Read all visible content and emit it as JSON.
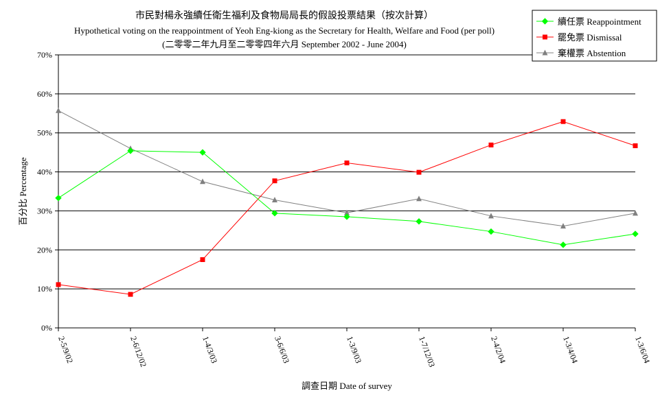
{
  "chart_data": {
    "type": "line",
    "title": "市民對楊永強續任衛生福利及食物局局長的假設投票結果（按次計算）",
    "subtitle": "Hypothetical voting on the reappointment of Yeoh Eng-kiong as the Secretary for Health, Welfare and Food (per poll)",
    "subtitle2": "(二零零二年九月至二零零四年六月 September 2002 -  June 2004)",
    "xlabel": "調查日期 Date of survey",
    "ylabel": "百分比 Percentage",
    "ylim": [
      0,
      70
    ],
    "yticks": [
      "0%",
      "10%",
      "20%",
      "30%",
      "40%",
      "50%",
      "60%",
      "70%"
    ],
    "categories": [
      "2-5/9/02",
      "2-6/12/02",
      "1-4/3/03",
      "3-6/6/03",
      "1-3/9/03",
      "1-7/12/03",
      "2-4/2/04",
      "1-3/4/04",
      "1-3/6/04"
    ],
    "grid": true,
    "legend_position": "top-right",
    "series": [
      {
        "name": "續任票 Reappointment",
        "color": "#00ff00",
        "marker": "diamond",
        "values": [
          33.3,
          45.4,
          45.0,
          29.4,
          28.5,
          27.3,
          24.7,
          21.3,
          24.1
        ]
      },
      {
        "name": "罷免票 Dismissal",
        "color": "#ff0000",
        "marker": "square",
        "values": [
          11.1,
          8.6,
          17.5,
          37.7,
          42.3,
          39.9,
          46.9,
          52.9,
          46.7
        ]
      },
      {
        "name": "棄權票 Abstention",
        "color": "#808080",
        "marker": "triangle",
        "values": [
          55.7,
          46.0,
          37.5,
          32.8,
          29.5,
          33.1,
          28.7,
          26.1,
          29.4
        ]
      }
    ]
  }
}
